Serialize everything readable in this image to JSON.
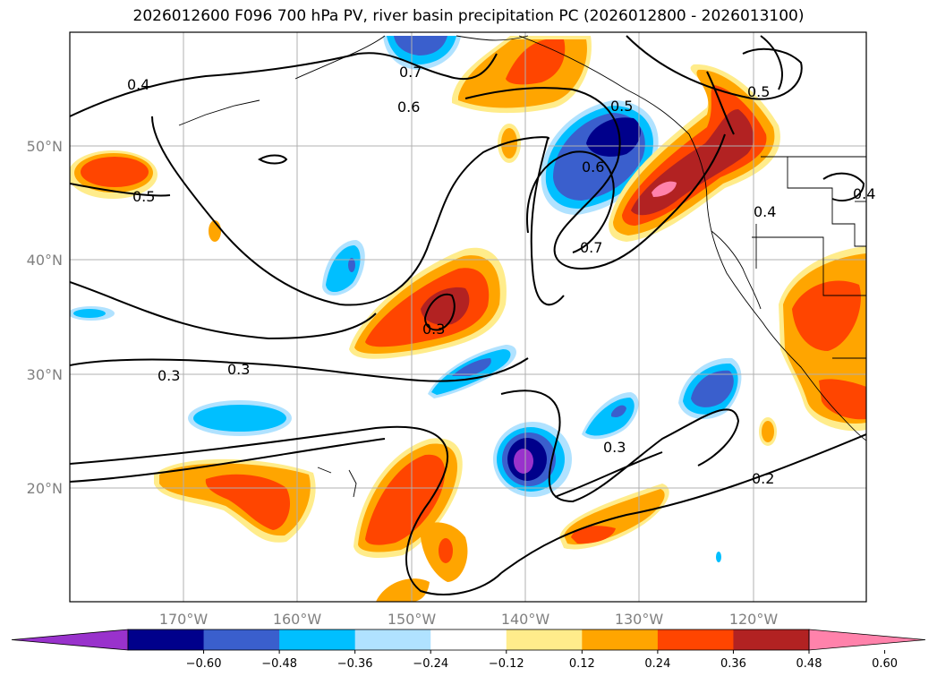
{
  "title": "2026012600 F096 700 hPa PV, river basin precipitation PC (2026012800 - 2026013100)",
  "map": {
    "lon_labels": [
      "170°W",
      "160°W",
      "150°W",
      "140°W",
      "130°W",
      "120°W"
    ],
    "lat_labels": [
      "50°N",
      "40°N",
      "30°N",
      "20°N"
    ],
    "lon_range": [
      -180,
      -110
    ],
    "lat_range": [
      10,
      60
    ]
  },
  "pv_contour_labels": [
    "0.7",
    "0.6",
    "0.4",
    "0.5",
    "0.6",
    "0.7",
    "0.4",
    "0.4",
    "0.5",
    "0.3",
    "0.3",
    "0.3",
    "0.3",
    "0.2",
    "0.5"
  ],
  "colorbar": {
    "ticks": [
      "−0.60",
      "−0.48",
      "−0.36",
      "−0.24",
      "−0.12",
      "0.12",
      "0.24",
      "0.36",
      "0.48",
      "0.60"
    ],
    "colors": [
      "#9932CC",
      "#00008B",
      "#3A5FCD",
      "#00BFFF",
      "#B0E2FF",
      "#FFFFFF",
      "#FFEC8B",
      "#FFA500",
      "#FF4500",
      "#B22222",
      "#FF82AB"
    ]
  }
}
